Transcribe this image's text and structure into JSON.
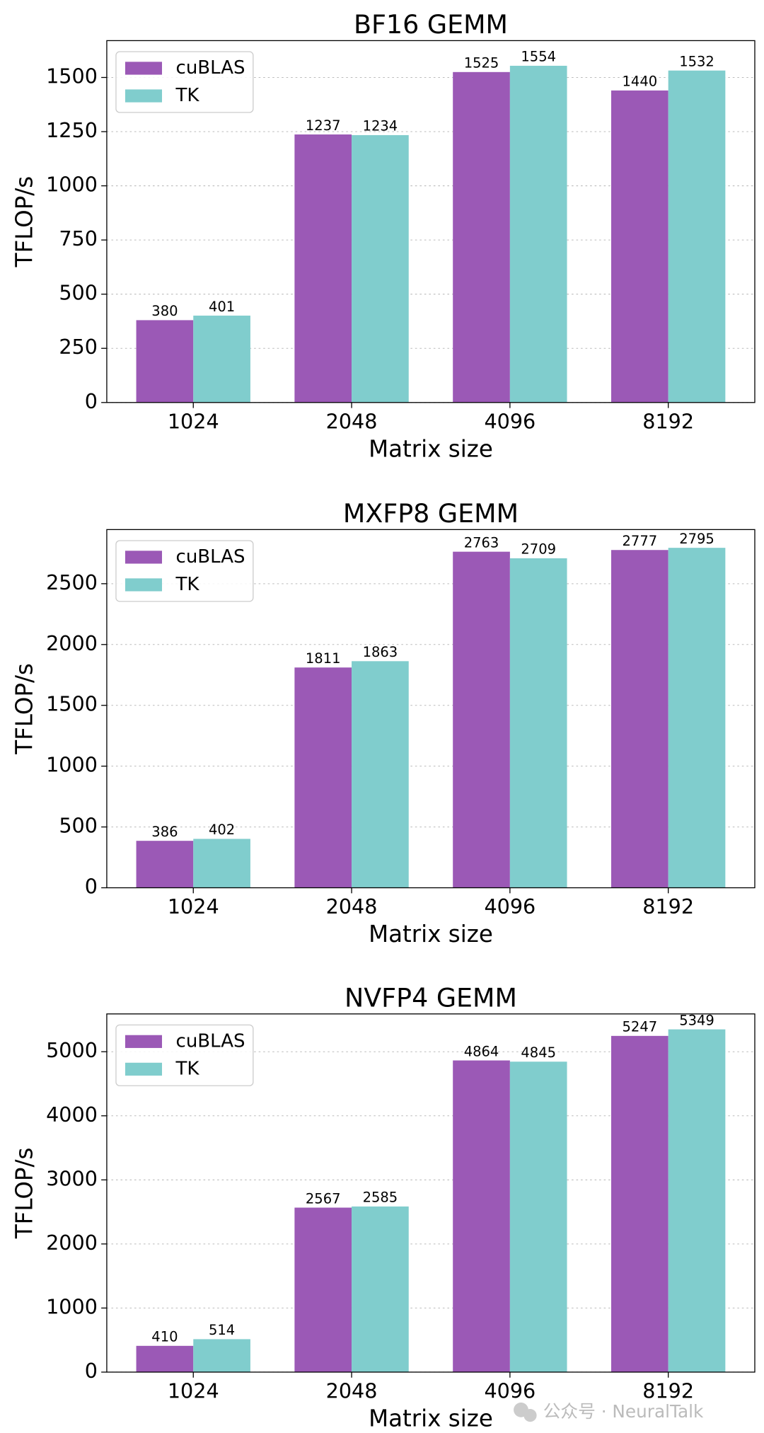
{
  "chart_data": [
    {
      "type": "bar",
      "title": "BF16 GEMM",
      "x_label": "Matrix size",
      "y_label": "TFLOP/s",
      "categories": [
        "1024",
        "2048",
        "4096",
        "8192"
      ],
      "series": [
        {
          "name": "cuBLAS",
          "color": "#9b59b6",
          "values": [
            380,
            1237,
            1525,
            1440
          ]
        },
        {
          "name": "TK",
          "color": "#80cdcd",
          "values": [
            401,
            1234,
            1554,
            1532
          ]
        }
      ],
      "ylim": [
        0,
        1670
      ],
      "yticks": [
        0,
        250,
        500,
        750,
        1000,
        1250,
        1500
      ],
      "grid": true,
      "legend": "upper left"
    },
    {
      "type": "bar",
      "title": "MXFP8 GEMM",
      "x_label": "Matrix size",
      "y_label": "TFLOP/s",
      "categories": [
        "1024",
        "2048",
        "4096",
        "8192"
      ],
      "series": [
        {
          "name": "cuBLAS",
          "color": "#9b59b6",
          "values": [
            386,
            1811,
            2763,
            2777
          ]
        },
        {
          "name": "TK",
          "color": "#80cdcd",
          "values": [
            402,
            1863,
            2709,
            2795
          ]
        }
      ],
      "ylim": [
        0,
        2945
      ],
      "yticks": [
        0,
        500,
        1000,
        1500,
        2000,
        2500
      ],
      "grid": true,
      "legend": "upper left"
    },
    {
      "type": "bar",
      "title": "NVFP4 GEMM",
      "x_label": "Matrix size",
      "y_label": "TFLOP/s",
      "categories": [
        "1024",
        "2048",
        "4096",
        "8192"
      ],
      "series": [
        {
          "name": "cuBLAS",
          "color": "#9b59b6",
          "values": [
            410,
            2567,
            4864,
            5247
          ]
        },
        {
          "name": "TK",
          "color": "#80cdcd",
          "values": [
            514,
            2585,
            4845,
            5349
          ]
        }
      ],
      "ylim": [
        0,
        5590
      ],
      "yticks": [
        0,
        1000,
        2000,
        3000,
        4000,
        5000
      ],
      "grid": true,
      "legend": "upper left"
    }
  ],
  "watermark": "公众号 · NeuralTalk"
}
